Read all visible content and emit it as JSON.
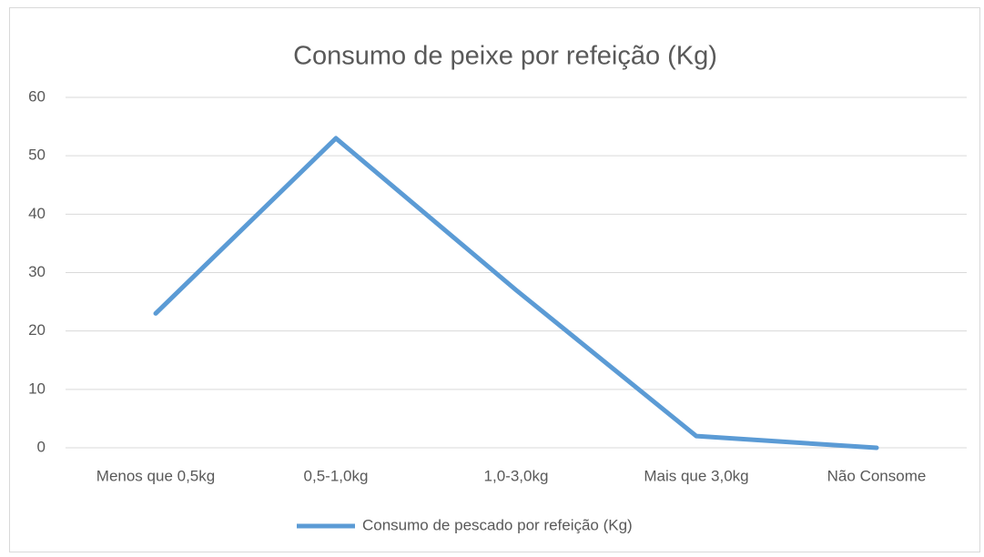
{
  "chart_data": {
    "type": "line",
    "title": "Consumo de peixe por refeição (Kg)",
    "categories": [
      "Menos que 0,5kg",
      "0,5-1,0kg",
      "1,0-3,0kg",
      "Mais que 3,0kg",
      "Não Consome"
    ],
    "series": [
      {
        "name": "Consumo de pescado por refeição (Kg)",
        "color": "#5b9bd5",
        "values": [
          23,
          53,
          27,
          2,
          0
        ]
      }
    ],
    "ylim": [
      0,
      60
    ],
    "yticks": [
      0,
      10,
      20,
      30,
      40,
      50,
      60
    ],
    "grid": true,
    "legend": "bottom"
  }
}
